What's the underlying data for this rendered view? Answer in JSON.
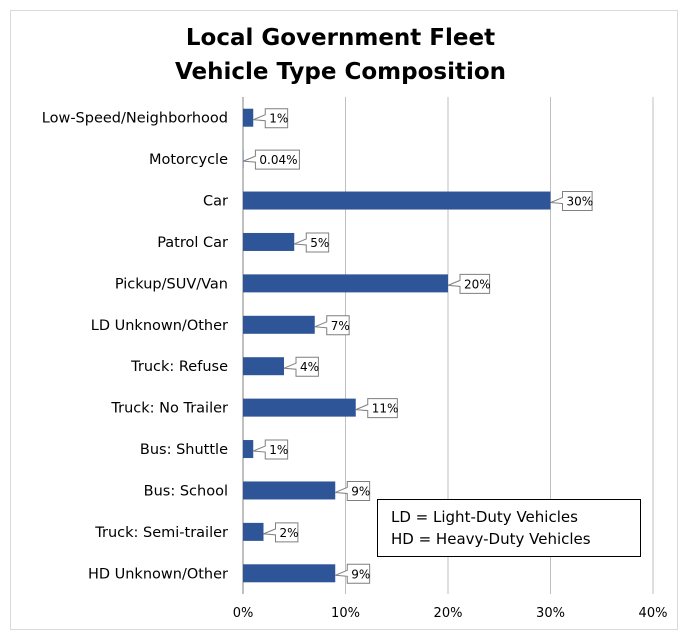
{
  "chart_data": {
    "type": "bar",
    "orientation": "horizontal",
    "title": "Local Government Fleet",
    "subtitle": "Vehicle Type Composition",
    "categories": [
      "Low-Speed/Neighborhood",
      "Motorcycle",
      "Car",
      "Patrol Car",
      "Pickup/SUV/Van",
      "LD Unknown/Other",
      "Truck: Refuse",
      "Truck: No Trailer",
      "Bus: Shuttle",
      "Bus: School",
      "Truck: Semi-trailer",
      "HD Unknown/Other"
    ],
    "values": [
      1,
      0.04,
      30,
      5,
      20,
      7,
      4,
      11,
      1,
      9,
      2,
      9
    ],
    "data_labels": [
      "1%",
      "0.04%",
      "30%",
      "5%",
      "20%",
      "7%",
      "4%",
      "11%",
      "1%",
      "9%",
      "2%",
      "9%"
    ],
    "x_ticks": [
      "0%",
      "10%",
      "20%",
      "30%",
      "40%"
    ],
    "xlim": [
      0,
      40
    ],
    "grid": "vertical",
    "bar_color": "#2e5597",
    "legend_lines": [
      "LD = Light-Duty Vehicles",
      "HD = Heavy-Duty Vehicles"
    ],
    "legend_position": "bottom-right"
  }
}
